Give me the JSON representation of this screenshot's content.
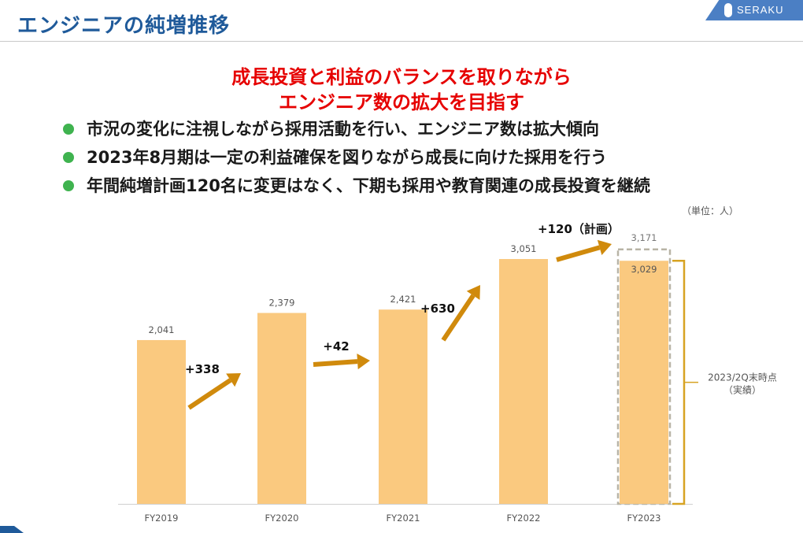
{
  "header": {
    "title": "エンジニアの純増推移",
    "logo_text": "SERAKU"
  },
  "headline": {
    "line1": "成長投資と利益のバランスを取りながら",
    "line2": "エンジニア数の拡大を目指す"
  },
  "bullets": [
    "市況の変化に注視しながら採用活動を行い、エンジニア数は拡大傾向",
    "2023年8月期は一定の利益確保を図りながら成長に向けた採用を行う",
    "年間純増計画120名に変更はなく、下期も採用や教育関連の成長投資を継続"
  ],
  "colors": {
    "bar": "#FAC97F",
    "arrow": "#D08A0C",
    "plan_border": "#B8B4A6",
    "bracket": "#D7A323",
    "headline": "#E60000",
    "title": "#1F5A9A",
    "bullet": "#3FB34F"
  },
  "chart_data": {
    "type": "bar",
    "unit_label": "（単位：人）",
    "categories": [
      "FY2019",
      "FY2020",
      "FY2021",
      "FY2022",
      "FY2023"
    ],
    "values": [
      2041,
      2379,
      2421,
      3051,
      3029
    ],
    "value_labels": [
      "2,041",
      "2,379",
      "2,421",
      "3,051",
      "3,029"
    ],
    "plan": {
      "category": "FY2023",
      "value": 3171,
      "label": "3,171"
    },
    "increments": [
      "+338",
      "+42",
      "+630",
      "+120（計画）"
    ],
    "bracket_note": [
      "2023/2Q末時点",
      "（実績）"
    ],
    "y_axis_visible": false,
    "grid": false
  }
}
